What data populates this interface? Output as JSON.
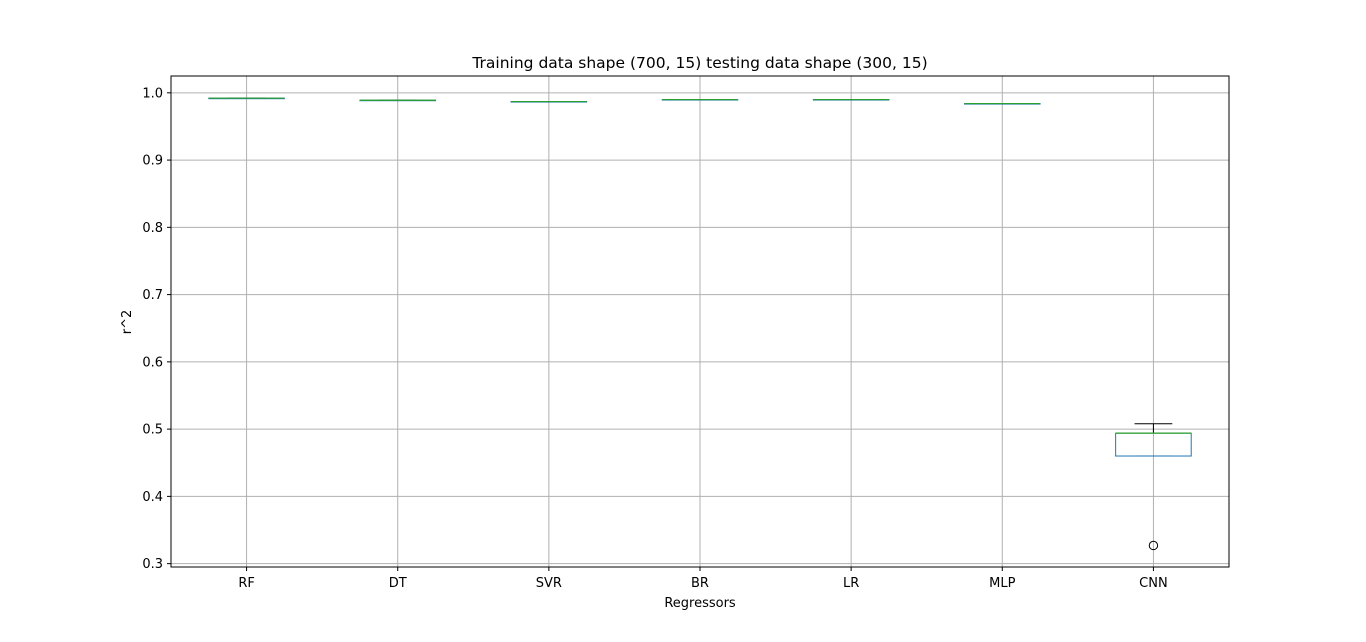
{
  "chart_data": {
    "type": "box",
    "title": "Training data shape (700, 15) testing data shape (300, 15)",
    "xlabel": "Regressors",
    "ylabel": "r^2",
    "categories": [
      "RF",
      "DT",
      "SVR",
      "BR",
      "LR",
      "MLP",
      "CNN"
    ],
    "boxes": [
      {
        "name": "RF",
        "whisker_low": 0.992,
        "q1": 0.992,
        "median": 0.992,
        "q3": 0.992,
        "whisker_high": 0.992,
        "outliers": []
      },
      {
        "name": "DT",
        "whisker_low": 0.989,
        "q1": 0.989,
        "median": 0.989,
        "q3": 0.989,
        "whisker_high": 0.989,
        "outliers": []
      },
      {
        "name": "SVR",
        "whisker_low": 0.987,
        "q1": 0.987,
        "median": 0.987,
        "q3": 0.987,
        "whisker_high": 0.987,
        "outliers": []
      },
      {
        "name": "BR",
        "whisker_low": 0.99,
        "q1": 0.99,
        "median": 0.99,
        "q3": 0.99,
        "whisker_high": 0.99,
        "outliers": []
      },
      {
        "name": "LR",
        "whisker_low": 0.99,
        "q1": 0.99,
        "median": 0.99,
        "q3": 0.99,
        "whisker_high": 0.99,
        "outliers": []
      },
      {
        "name": "MLP",
        "whisker_low": 0.984,
        "q1": 0.984,
        "median": 0.984,
        "q3": 0.984,
        "whisker_high": 0.984,
        "outliers": []
      },
      {
        "name": "CNN",
        "whisker_low": 0.46,
        "q1": 0.46,
        "median": 0.494,
        "q3": 0.494,
        "whisker_high": 0.508,
        "outliers": [
          0.327
        ]
      }
    ],
    "ylim": [
      0.295,
      1.025
    ],
    "yticks": [
      0.3,
      0.4,
      0.5,
      0.6,
      0.7,
      0.8,
      0.9,
      1.0
    ],
    "ytick_labels": [
      "0.3",
      "0.4",
      "0.5",
      "0.6",
      "0.7",
      "0.8",
      "0.9",
      "1.0"
    ],
    "grid": true,
    "colors": {
      "box": "#1f77b4",
      "median": "#2ca02c",
      "whisker": "#000000",
      "grid": "#b0b0b0",
      "axes": "#000000"
    }
  }
}
